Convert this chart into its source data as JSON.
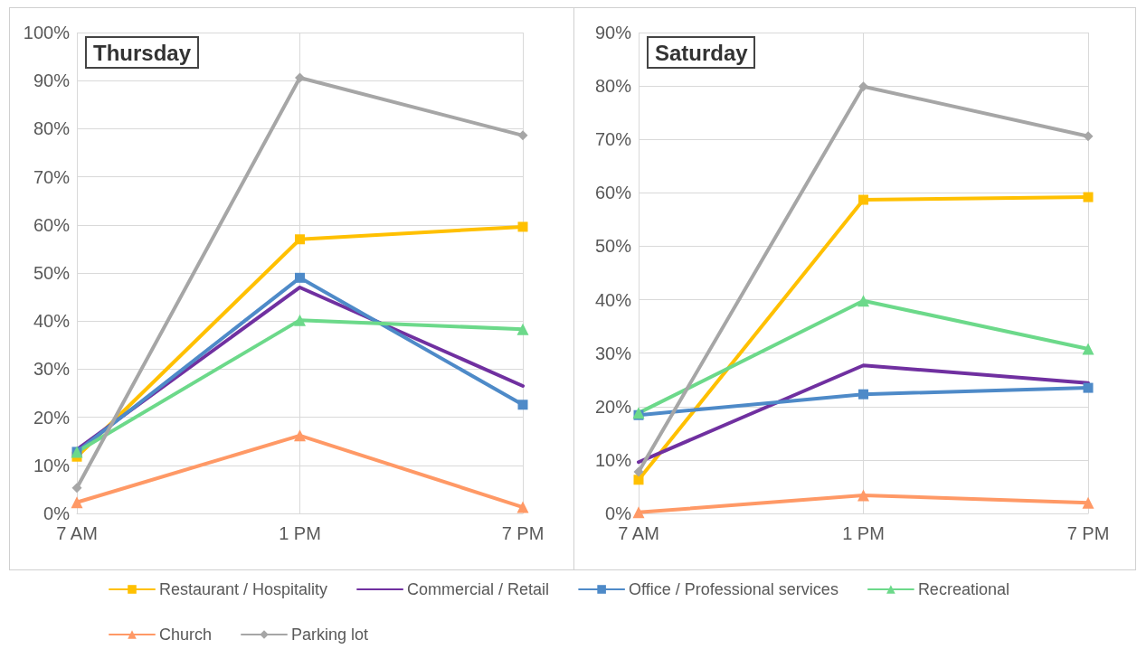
{
  "chart_data": [
    {
      "type": "line",
      "title": "Thursday",
      "categories": [
        "7 AM",
        "1 PM",
        "7 PM"
      ],
      "ylim": [
        0,
        1
      ],
      "yticks": [
        {
          "value": 0,
          "label": "0%"
        },
        {
          "value": 0.1,
          "label": "10%"
        },
        {
          "value": 0.2,
          "label": "20%"
        },
        {
          "value": 0.3,
          "label": "30%"
        },
        {
          "value": 0.4,
          "label": "40%"
        },
        {
          "value": 0.5,
          "label": "50%"
        },
        {
          "value": 0.6,
          "label": "60%"
        },
        {
          "value": 0.7,
          "label": "70%"
        },
        {
          "value": 0.8,
          "label": "80%"
        },
        {
          "value": 0.9,
          "label": "90%"
        },
        {
          "value": 1,
          "label": "100%"
        }
      ],
      "grid": true,
      "legend": "bottom",
      "line_style": "solid",
      "series": [
        {
          "name": "Restaurant / Hospitality",
          "color": "#ffc000",
          "marker": "square",
          "values": [
            0.118,
            0.57,
            0.596
          ]
        },
        {
          "name": "Commercial / Retail",
          "color": "#7030a0",
          "marker": "none",
          "values": [
            0.133,
            0.47,
            0.265
          ]
        },
        {
          "name": "Office / Professional services",
          "color": "#4e8ac8",
          "marker": "square",
          "values": [
            0.128,
            0.49,
            0.226
          ]
        },
        {
          "name": "Recreational",
          "color": "#6cd98a",
          "marker": "triangle",
          "values": [
            0.128,
            0.402,
            0.383
          ]
        },
        {
          "name": "Church",
          "color": "#ff9966",
          "marker": "triangle",
          "values": [
            0.023,
            0.162,
            0.013
          ]
        },
        {
          "name": "Parking lot",
          "color": "#a6a6a6",
          "marker": "diamond",
          "values": [
            0.053,
            0.906,
            0.786
          ]
        }
      ]
    },
    {
      "type": "line",
      "title": "Saturday",
      "categories": [
        "7 AM",
        "1 PM",
        "7 PM"
      ],
      "ylim": [
        0,
        0.9
      ],
      "yticks": [
        {
          "value": 0,
          "label": "0%"
        },
        {
          "value": 0.1,
          "label": "10%"
        },
        {
          "value": 0.2,
          "label": "20%"
        },
        {
          "value": 0.3,
          "label": "30%"
        },
        {
          "value": 0.4,
          "label": "40%"
        },
        {
          "value": 0.5,
          "label": "50%"
        },
        {
          "value": 0.6,
          "label": "60%"
        },
        {
          "value": 0.7,
          "label": "70%"
        },
        {
          "value": 0.8,
          "label": "80%"
        },
        {
          "value": 0.9,
          "label": "90%"
        }
      ],
      "grid": true,
      "line_style": "solid",
      "series": [
        {
          "color": "#ffc000",
          "marker": "square",
          "values": [
            0.063,
            0.587,
            0.592
          ]
        },
        {
          "color": "#7030a0",
          "marker": "none",
          "values": [
            0.096,
            0.277,
            0.244
          ]
        },
        {
          "color": "#4e8ac8",
          "marker": "square",
          "values": [
            0.184,
            0.223,
            0.235
          ]
        },
        {
          "color": "#6cd98a",
          "marker": "triangle",
          "values": [
            0.188,
            0.398,
            0.308
          ]
        },
        {
          "color": "#ff9966",
          "marker": "triangle",
          "values": [
            0.002,
            0.034,
            0.02
          ]
        },
        {
          "color": "#a6a6a6",
          "marker": "diamond",
          "values": [
            0.078,
            0.799,
            0.706
          ]
        }
      ]
    }
  ]
}
